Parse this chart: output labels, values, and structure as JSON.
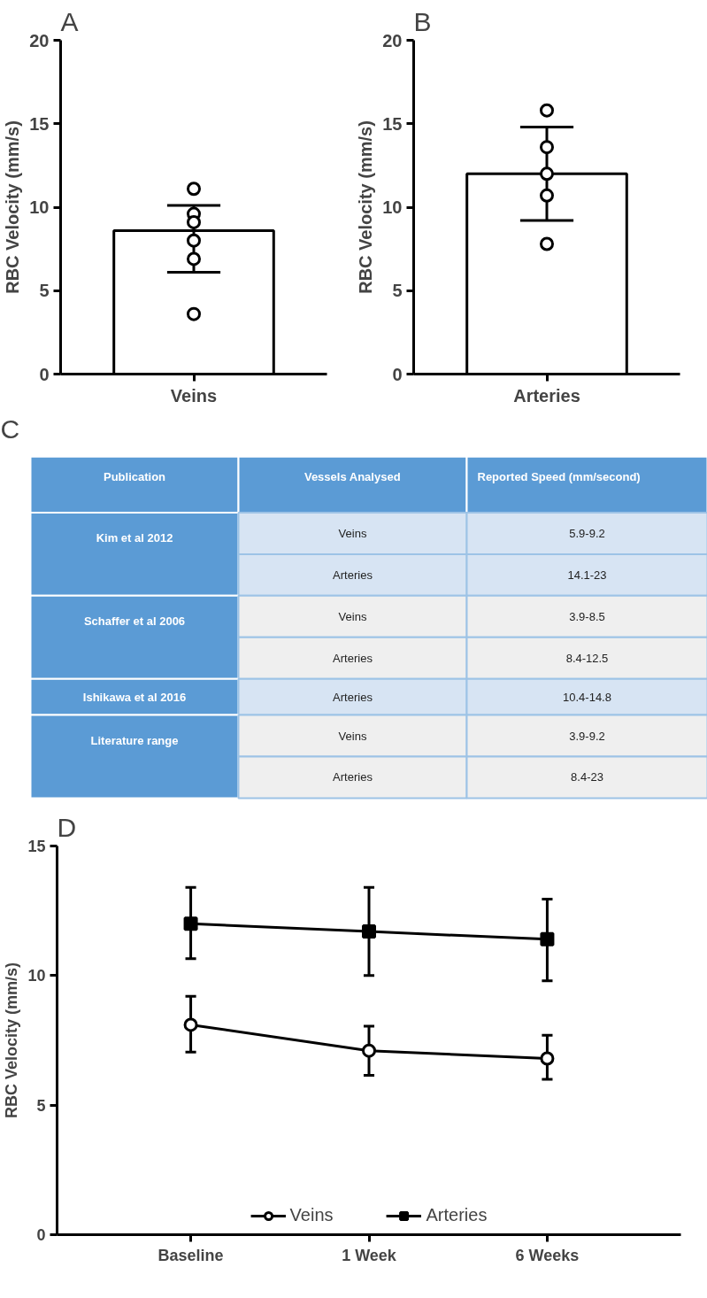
{
  "chart_data": [
    {
      "type": "bar",
      "title": "A",
      "ylabel": "RBC Velocity (mm/s)",
      "categories": [
        "Veins"
      ],
      "ylim": [
        0,
        20
      ],
      "yticks": [
        0,
        5,
        10,
        15,
        20
      ],
      "grid": false,
      "series": [
        {
          "type": "bar",
          "color": "#ffffff",
          "values": [
            8.6
          ],
          "errors": [
            [
              6.1,
              10.1
            ]
          ]
        },
        {
          "type": "scatter",
          "color": "#000000",
          "marker": "circle",
          "x": [
            "Veins",
            "Veins",
            "Veins",
            "Veins",
            "Veins",
            "Veins"
          ],
          "values": [
            11.1,
            9.6,
            9.1,
            8.0,
            6.9,
            3.6
          ]
        }
      ]
    },
    {
      "type": "bar",
      "title": "B",
      "ylabel": "RBC Velocity (mm/s)",
      "categories": [
        "Arteries"
      ],
      "ylim": [
        0,
        20
      ],
      "yticks": [
        0,
        5,
        10,
        15,
        20
      ],
      "grid": false,
      "series": [
        {
          "type": "bar",
          "color": "#ffffff",
          "values": [
            12.0
          ],
          "errors": [
            [
              9.2,
              14.8
            ]
          ]
        },
        {
          "type": "scatter",
          "color": "#000000",
          "marker": "circle",
          "x": [
            "Arteries",
            "Arteries",
            "Arteries",
            "Arteries",
            "Arteries"
          ],
          "values": [
            15.8,
            13.6,
            12.0,
            10.7,
            7.8
          ]
        }
      ]
    },
    {
      "type": "other",
      "title": "C",
      "annotations": [
        "Publication",
        "Vessels Analysed",
        "Reported Speed (mm/second)",
        "Kim et al 2012",
        "Veins",
        "5.9-9.2",
        "Arteries",
        "14.1-23",
        "Schaffer et al 2006",
        "Veins",
        "3.9-8.5",
        "Arteries",
        "8.4-12.5",
        "Ishikawa et al 2016",
        "Arteries",
        "10.4-14.8",
        "Literature range",
        "Veins",
        "3.9-9.2",
        "Arteries",
        "8.4-23"
      ]
    },
    {
      "type": "line",
      "title": "D",
      "ylabel": "RBC Velocity (mm/s)",
      "categories": [
        "Baseline",
        "1 Week",
        "6 Weeks"
      ],
      "ylim": [
        0,
        15
      ],
      "yticks": [
        0,
        5,
        10,
        15
      ],
      "grid": false,
      "legend": "bottom",
      "line_style": "solid",
      "series": [
        {
          "name": "Veins",
          "color": "#000000",
          "marker": "circle",
          "values": [
            8.1,
            7.1,
            6.8
          ],
          "errors": [
            [
              7.05,
              9.2
            ],
            [
              6.15,
              8.05
            ],
            [
              6.0,
              7.7
            ]
          ]
        },
        {
          "name": "Arteries",
          "color": "#000000",
          "marker": "square",
          "values": [
            12.0,
            11.7,
            11.4
          ],
          "errors": [
            [
              10.65,
              13.4
            ],
            [
              10.0,
              13.4
            ],
            [
              9.8,
              12.95
            ]
          ]
        }
      ]
    }
  ]
}
